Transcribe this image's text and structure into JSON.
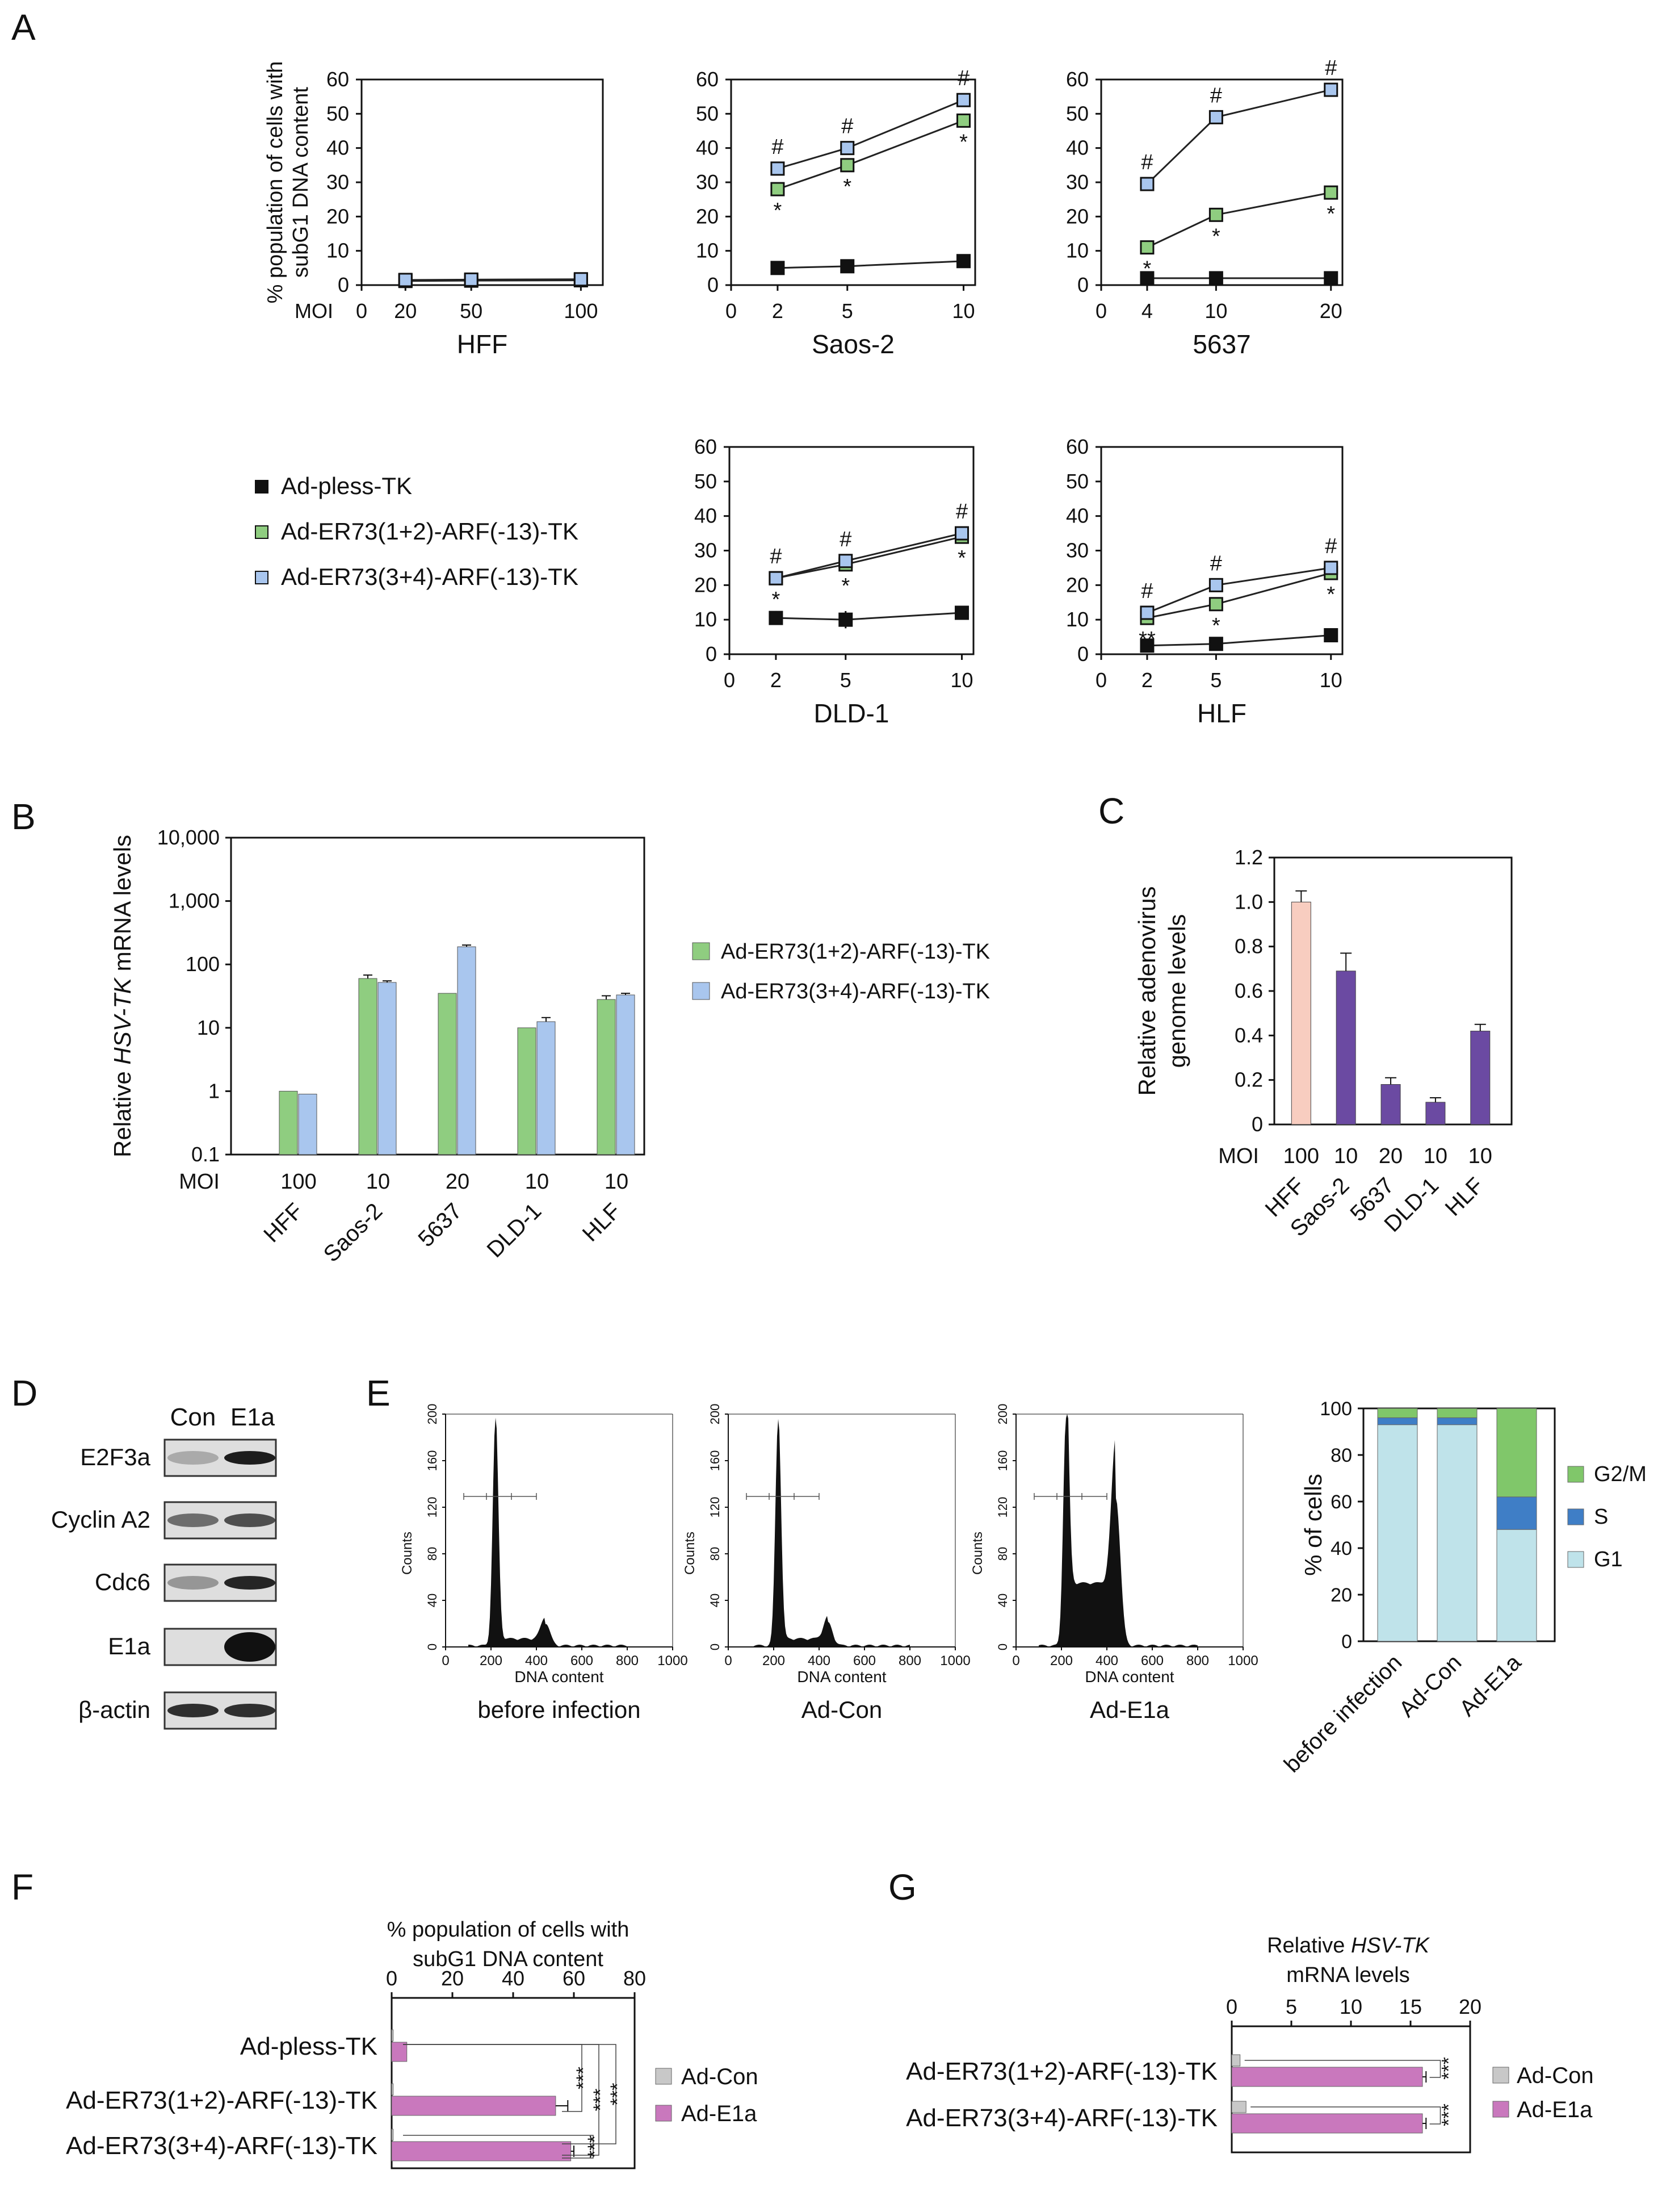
{
  "colors": {
    "green": "#8fcd80",
    "blue": "#a9c6ee",
    "black": "#111111",
    "pink": "#f8cdc0",
    "purple": "#6b4aa2",
    "magenta": "#c978bd",
    "gray": "#c8c8c8",
    "g2m": "#80c76a",
    "s": "#3f7ec6",
    "g1": "#bfe3ea"
  },
  "panel_letters": [
    "A",
    "B",
    "C",
    "D",
    "E",
    "F",
    "G"
  ],
  "panelA": {
    "ylabel_line1": "% population of cells with",
    "ylabel_line2": "subG1 DNA content",
    "moi_label": "MOI",
    "legend": [
      "Ad-pless-TK",
      "Ad-ER73(1+2)-ARF(-13)-TK",
      "Ad-ER73(3+4)-ARF(-13)-TK"
    ]
  },
  "chart_data": [
    {
      "id": "A-HFF",
      "type": "line",
      "title": "HFF",
      "xlabel": "MOI",
      "ylabel": "% population of cells with subG1 DNA content",
      "xlim": [
        0,
        110
      ],
      "ylim": [
        0,
        60
      ],
      "xticks": [
        0,
        20,
        50,
        100
      ],
      "yticks": [
        0,
        10,
        20,
        30,
        40,
        50,
        60
      ],
      "x": [
        20,
        50,
        100
      ],
      "series": [
        {
          "name": "Ad-pless-TK",
          "values": [
            1.2,
            1.3,
            1.4
          ],
          "errors": [
            0.3,
            0.3,
            0.3
          ],
          "marks": [
            "",
            "",
            ""
          ]
        },
        {
          "name": "Ad-ER73(1+2)-ARF(-13)-TK",
          "values": [
            1.4,
            1.5,
            1.6
          ],
          "errors": [
            0.3,
            0.3,
            0.3
          ],
          "marks": [
            "",
            "",
            ""
          ]
        },
        {
          "name": "Ad-ER73(3+4)-ARF(-13)-TK",
          "values": [
            1.5,
            1.6,
            1.7
          ],
          "errors": [
            0.3,
            0.3,
            0.3
          ],
          "marks": [
            "",
            "",
            ""
          ]
        }
      ]
    },
    {
      "id": "A-Saos2",
      "type": "line",
      "title": "Saos-2",
      "xlim": [
        0,
        10.5
      ],
      "ylim": [
        0,
        60
      ],
      "xticks": [
        0,
        2,
        5,
        10
      ],
      "yticks": [
        0,
        10,
        20,
        30,
        40,
        50,
        60
      ],
      "x": [
        2,
        5,
        10
      ],
      "series": [
        {
          "name": "Ad-pless-TK",
          "values": [
            5,
            5.5,
            7
          ],
          "errors": [
            1.5,
            1.2,
            1.5
          ],
          "marks": [
            "",
            "",
            ""
          ]
        },
        {
          "name": "Ad-ER73(1+2)-ARF(-13)-TK",
          "values": [
            28,
            35,
            48
          ],
          "errors": [
            1.5,
            1.5,
            1.5
          ],
          "marks": [
            "*",
            "*",
            "*"
          ]
        },
        {
          "name": "Ad-ER73(3+4)-ARF(-13)-TK",
          "values": [
            34,
            40,
            54
          ],
          "errors": [
            1.5,
            1.5,
            1.5
          ],
          "marks": [
            "#",
            "#",
            "#"
          ]
        }
      ]
    },
    {
      "id": "A-5637",
      "type": "line",
      "title": "5637",
      "xlim": [
        0,
        21
      ],
      "ylim": [
        0,
        60
      ],
      "xticks": [
        0,
        4,
        10,
        20
      ],
      "yticks": [
        0,
        10,
        20,
        30,
        40,
        50,
        60
      ],
      "x": [
        4,
        10,
        20
      ],
      "series": [
        {
          "name": "Ad-pless-TK",
          "values": [
            2,
            2,
            2
          ],
          "errors": [
            0.8,
            0.8,
            0.8
          ],
          "marks": [
            "",
            "",
            ""
          ]
        },
        {
          "name": "Ad-ER73(1+2)-ARF(-13)-TK",
          "values": [
            11,
            20.5,
            27
          ],
          "errors": [
            1.2,
            1.2,
            2
          ],
          "marks": [
            "*",
            "*",
            "*"
          ]
        },
        {
          "name": "Ad-ER73(3+4)-ARF(-13)-TK",
          "values": [
            29.5,
            49,
            57
          ],
          "errors": [
            2,
            1.5,
            1.5
          ],
          "marks": [
            "#",
            "#",
            "#"
          ]
        }
      ]
    },
    {
      "id": "A-DLD1",
      "type": "line",
      "title": "DLD-1",
      "xlim": [
        0,
        10.5
      ],
      "ylim": [
        0,
        60
      ],
      "xticks": [
        0,
        2,
        5,
        10
      ],
      "yticks": [
        0,
        10,
        20,
        30,
        40,
        50,
        60
      ],
      "x": [
        2,
        5,
        10
      ],
      "series": [
        {
          "name": "Ad-pless-TK",
          "values": [
            10.5,
            10,
            12
          ],
          "errors": [
            2,
            2.5,
            1.5
          ],
          "marks": [
            "",
            "",
            ""
          ]
        },
        {
          "name": "Ad-ER73(1+2)-ARF(-13)-TK",
          "values": [
            22,
            26,
            34
          ],
          "errors": [
            1.5,
            1.5,
            2
          ],
          "marks": [
            "*",
            "*",
            "*"
          ]
        },
        {
          "name": "Ad-ER73(3+4)-ARF(-13)-TK",
          "values": [
            22,
            27,
            35
          ],
          "errors": [
            1.5,
            1.5,
            2
          ],
          "marks": [
            "#",
            "#",
            "#"
          ]
        }
      ]
    },
    {
      "id": "A-HLF",
      "type": "line",
      "title": "HLF",
      "xlim": [
        0,
        10.5
      ],
      "ylim": [
        0,
        60
      ],
      "xticks": [
        0,
        2,
        5,
        10
      ],
      "yticks": [
        0,
        10,
        20,
        30,
        40,
        50,
        60
      ],
      "x": [
        2,
        5,
        10
      ],
      "series": [
        {
          "name": "Ad-pless-TK",
          "values": [
            2.5,
            3,
            5.5
          ],
          "errors": [
            1.5,
            1,
            2
          ],
          "marks": [
            "",
            "",
            ""
          ]
        },
        {
          "name": "Ad-ER73(1+2)-ARF(-13)-TK",
          "values": [
            10.5,
            14.5,
            23.5
          ],
          "errors": [
            1.5,
            1.5,
            1.5
          ],
          "marks": [
            "**",
            "*",
            "*"
          ]
        },
        {
          "name": "Ad-ER73(3+4)-ARF(-13)-TK",
          "values": [
            12,
            20,
            25
          ],
          "errors": [
            2,
            1.5,
            2
          ],
          "marks": [
            "#",
            "#",
            "#"
          ]
        }
      ]
    },
    {
      "id": "B",
      "type": "bar",
      "scale": "log",
      "ylabel_pre": "Relative ",
      "ylabel_italic": "HSV-TK",
      "ylabel_post": "  mRNA levels",
      "yticks": [
        "10,000",
        "1,000",
        "100",
        "10",
        "1",
        "0.1"
      ],
      "ytick_values": [
        10000,
        1000,
        100,
        10,
        1,
        0.1
      ],
      "moi_label": "MOI",
      "categories": [
        "HFF",
        "Saos-2",
        "5637",
        "DLD-1",
        "HLF"
      ],
      "moi": [
        "100",
        "10",
        "20",
        "10",
        "10"
      ],
      "series": [
        {
          "name": "Ad-ER73(1+2)-ARF(-13)-TK",
          "values": [
            1.0,
            60,
            35,
            10,
            28
          ],
          "errors": [
            0,
            8,
            0,
            0,
            4
          ]
        },
        {
          "name": "Ad-ER73(3+4)-ARF(-13)-TK",
          "values": [
            0.9,
            52,
            190,
            12.5,
            33
          ],
          "errors": [
            0,
            3,
            12,
            2,
            2
          ]
        }
      ]
    },
    {
      "id": "C",
      "type": "bar",
      "ylabel_line1": "Relative adenovirus",
      "ylabel_line2": "genome levels",
      "ylim": [
        0,
        1.2
      ],
      "yticks": [
        "0",
        "0.2",
        "0.4",
        "0.6",
        "0.8",
        "1.0",
        "1.2"
      ],
      "moi_label": "MOI",
      "categories": [
        "HFF",
        "Saos-2",
        "5637",
        "DLD-1",
        "HLF"
      ],
      "moi": [
        "100",
        "10",
        "20",
        "10",
        "10"
      ],
      "values": [
        1.0,
        0.69,
        0.18,
        0.1,
        0.42
      ],
      "errors": [
        0.05,
        0.08,
        0.03,
        0.02,
        0.03
      ]
    },
    {
      "id": "E-hist",
      "type": "histogram",
      "xlabel": "DNA content",
      "ylabel": "Counts",
      "xticks": [
        "0",
        "200",
        "400",
        "600",
        "800",
        "1000"
      ],
      "yticks": [
        "0",
        "40",
        "80",
        "120",
        "160",
        "200"
      ],
      "titles": [
        "before infection",
        "Ad-Con",
        "Ad-E1a"
      ]
    },
    {
      "id": "E-bar",
      "type": "stacked-bar",
      "ylabel": "% of cells",
      "yticks": [
        "0",
        "20",
        "40",
        "60",
        "80",
        "100"
      ],
      "categories": [
        "before infection",
        "Ad-Con",
        "Ad-E1a"
      ],
      "series": [
        {
          "name": "G1",
          "values": [
            93,
            93,
            48
          ]
        },
        {
          "name": "S",
          "values": [
            3,
            3,
            14
          ]
        },
        {
          "name": "G2/M",
          "values": [
            4,
            4,
            38
          ]
        }
      ],
      "legend": [
        "G2/M",
        "S",
        "G1"
      ]
    },
    {
      "id": "F",
      "type": "hbar",
      "title_line1": "% population of cells with",
      "title_line2": "subG1 DNA content",
      "xlim": [
        0,
        80
      ],
      "xticks": [
        "0",
        "20",
        "40",
        "60",
        "80"
      ],
      "categories": [
        "Ad-pless-TK",
        "Ad-ER73(1+2)-ARF(-13)-TK",
        "Ad-ER73(3+4)-ARF(-13)-TK"
      ],
      "series": [
        {
          "name": "Ad-Con",
          "values": [
            0.5,
            0.5,
            0.5
          ],
          "errors": [
            0,
            0,
            0
          ]
        },
        {
          "name": "Ad-E1a",
          "values": [
            5,
            54,
            59
          ],
          "errors": [
            0,
            4,
            1
          ]
        }
      ],
      "significance": [
        "***",
        "***",
        "***",
        "***"
      ]
    },
    {
      "id": "G",
      "type": "hbar",
      "title_italic": "HSV-TK",
      "title_pre": "Relative ",
      "title_line2": "mRNA levels",
      "xlim": [
        0,
        20
      ],
      "xticks": [
        "0",
        "5",
        "10",
        "15",
        "20"
      ],
      "categories": [
        "Ad-ER73(1+2)-ARF(-13)-TK",
        "Ad-ER73(3+4)-ARF(-13)-TK"
      ],
      "series": [
        {
          "name": "Ad-Con",
          "values": [
            0.7,
            1.2
          ],
          "errors": [
            0.1,
            0.2
          ]
        },
        {
          "name": "Ad-E1a",
          "values": [
            16,
            16
          ],
          "errors": [
            0.3,
            0.3
          ]
        }
      ],
      "significance": [
        "***",
        "***"
      ]
    }
  ],
  "panelD": {
    "col_labels": [
      "Con",
      "E1a"
    ],
    "rows": [
      "E2F3a",
      "Cyclin A2",
      "Cdc6",
      "E1a",
      "β-actin"
    ]
  }
}
